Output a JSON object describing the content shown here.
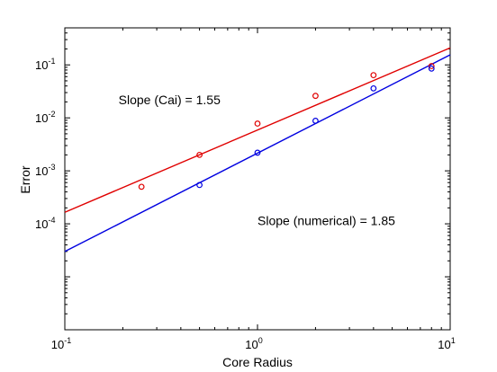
{
  "chart_data": {
    "type": "scatter",
    "xlabel": "Core Radius",
    "ylabel": "Error",
    "xscale": "log",
    "yscale": "log",
    "xlim": [
      0.1,
      10
    ],
    "ylim": [
      1e-06,
      0.5
    ],
    "x_ticks": [
      {
        "value": 0.1,
        "base": "10",
        "exp": "-1"
      },
      {
        "value": 1,
        "base": "10",
        "exp": "0"
      },
      {
        "value": 10,
        "base": "10",
        "exp": "1"
      }
    ],
    "y_ticks": [
      {
        "value": 0.0001,
        "base": "10",
        "exp": "-4"
      },
      {
        "value": 0.001,
        "base": "10",
        "exp": "-3"
      },
      {
        "value": 0.01,
        "base": "10",
        "exp": "-2"
      },
      {
        "value": 0.1,
        "base": "10",
        "exp": "-1"
      }
    ],
    "grid": false,
    "series": [
      {
        "color": "#e00000",
        "points": [
          {
            "x": 0.25,
            "y": 0.0005
          },
          {
            "x": 0.5,
            "y": 0.002
          },
          {
            "x": 1,
            "y": 0.0078
          },
          {
            "x": 2,
            "y": 0.026
          },
          {
            "x": 4,
            "y": 0.064
          },
          {
            "x": 8,
            "y": 0.095
          }
        ],
        "fit": {
          "x": [
            0.1,
            10
          ],
          "y": [
            0.000165,
            0.21
          ]
        }
      },
      {
        "color": "#0000e0",
        "points": [
          {
            "x": 0.5,
            "y": 0.00054
          },
          {
            "x": 1,
            "y": 0.0022
          },
          {
            "x": 2,
            "y": 0.0088
          },
          {
            "x": 4,
            "y": 0.036
          },
          {
            "x": 8,
            "y": 0.085
          }
        ],
        "fit": {
          "x": [
            0.1,
            10
          ],
          "y": [
            3e-05,
            0.155
          ]
        }
      }
    ],
    "annotations": [
      {
        "text": "Slope (Cai) = 1.55",
        "x": 0.19,
        "y": 0.018
      },
      {
        "text": "Slope (numerical) = 1.85",
        "x": 1.0,
        "y": 9.5e-05
      }
    ]
  }
}
